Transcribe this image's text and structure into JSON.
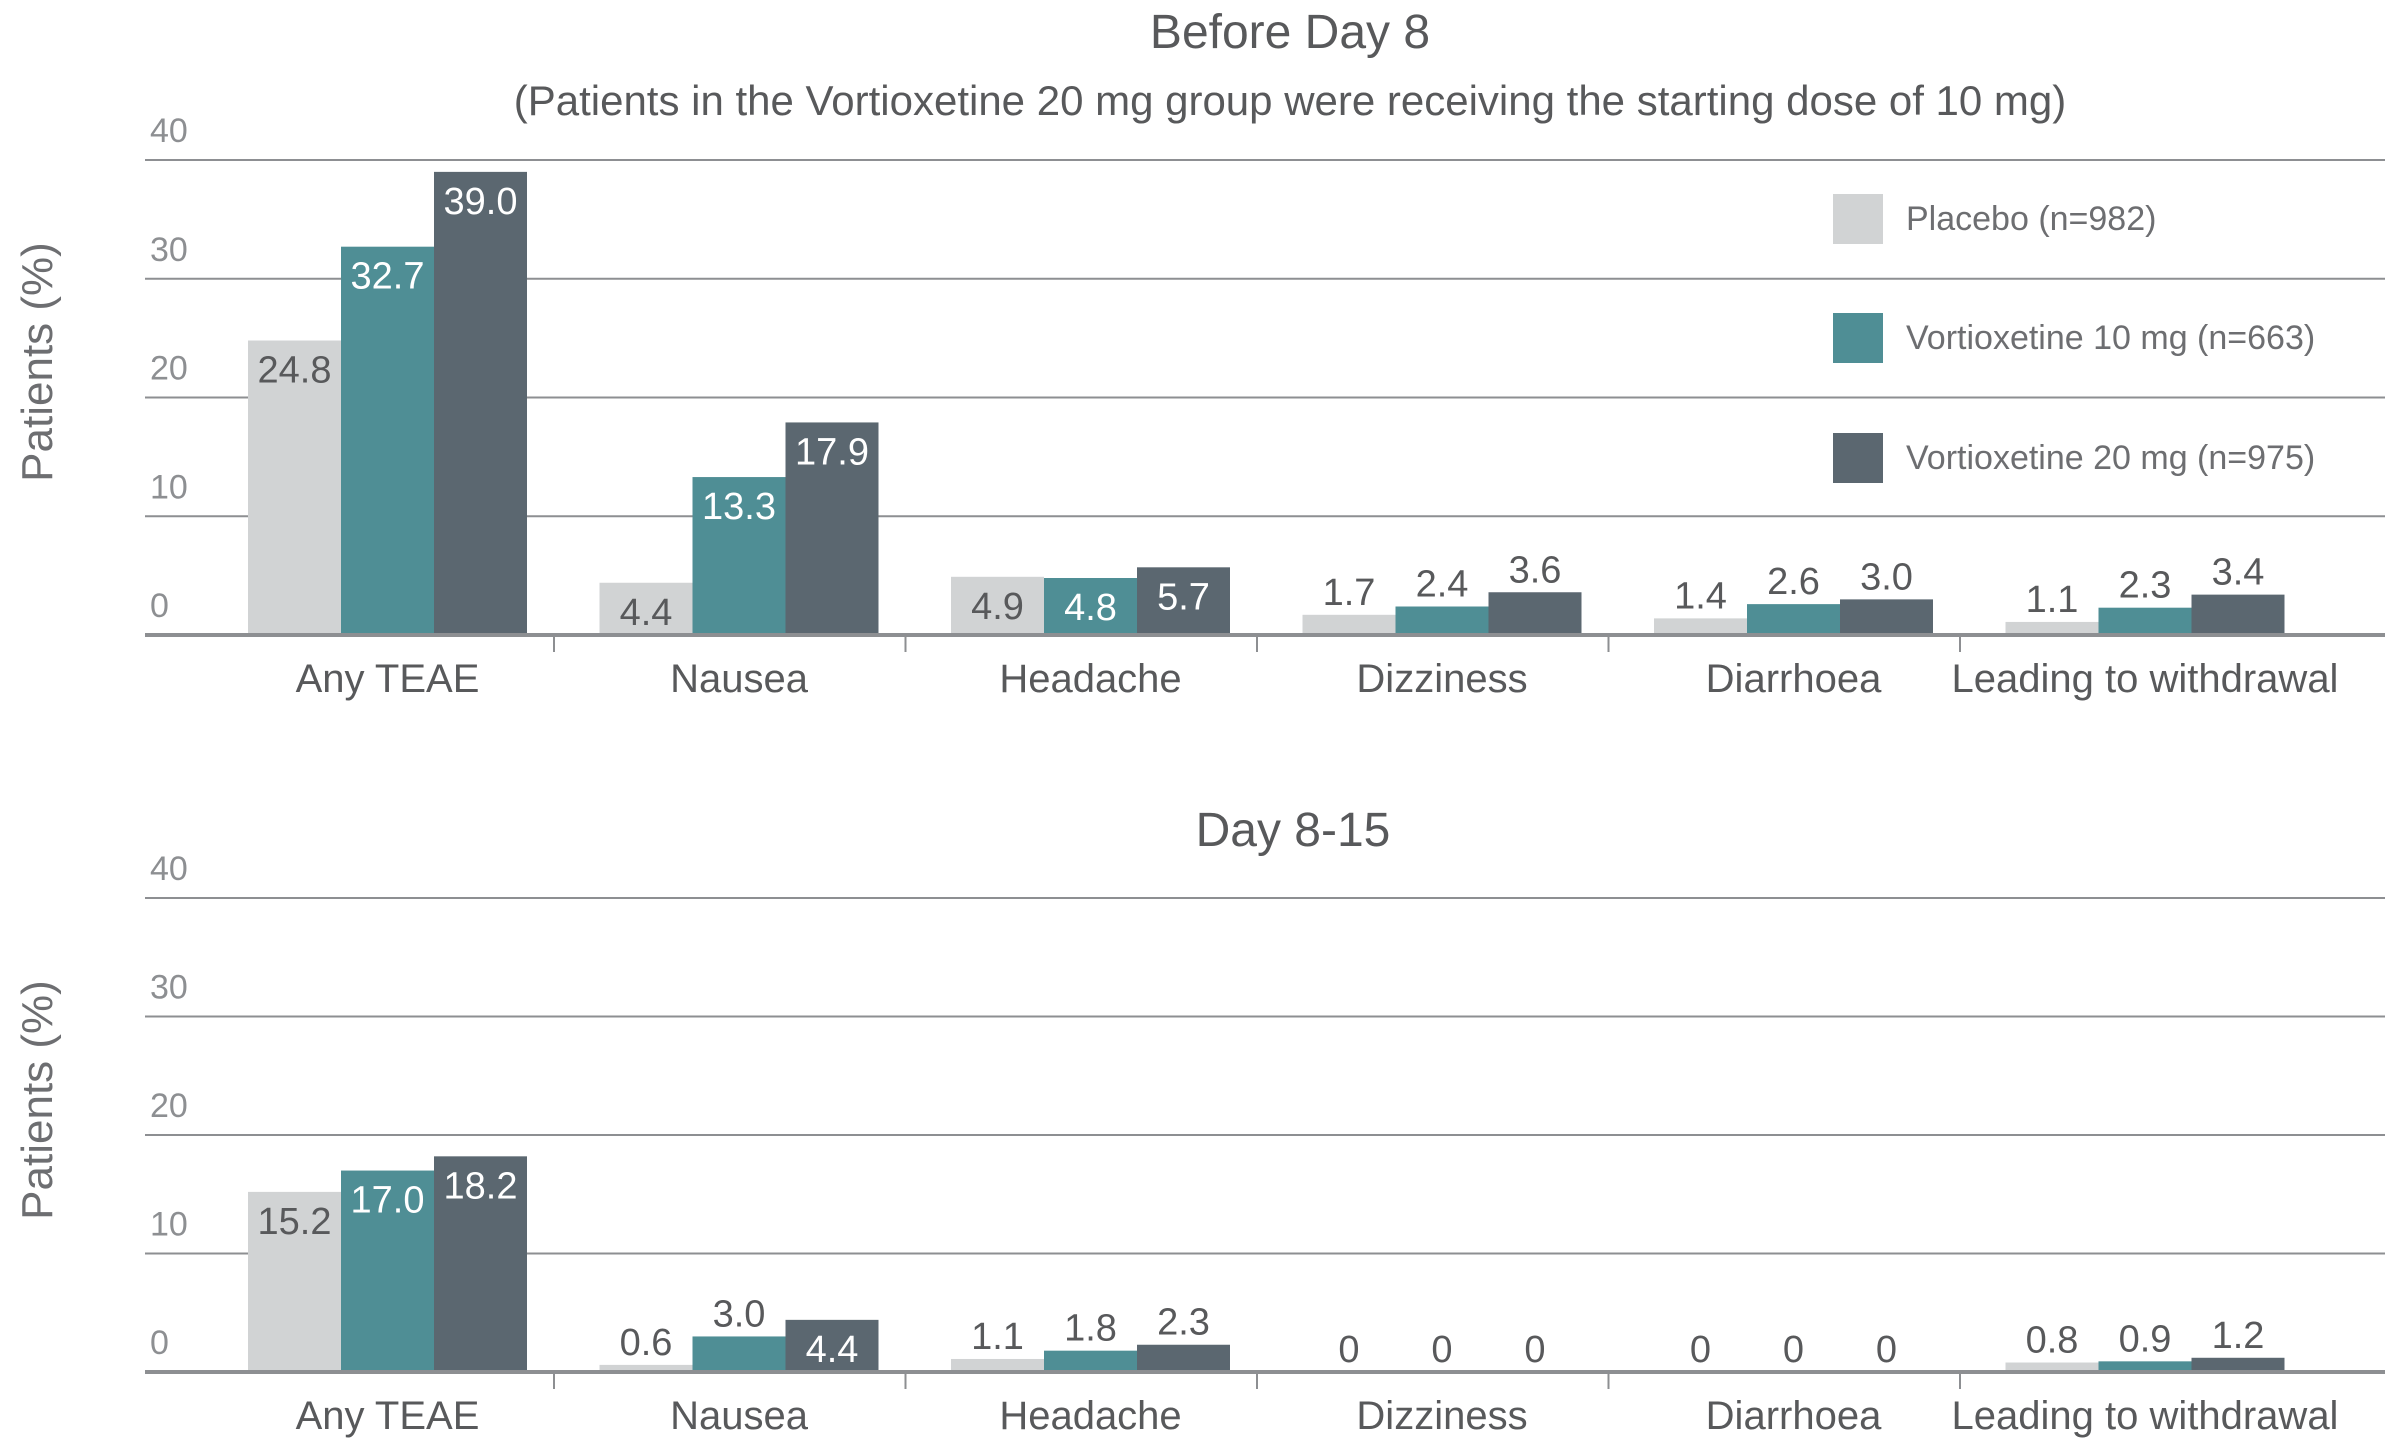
{
  "legend": [
    {
      "name": "Placebo (n=982)",
      "color": "#d1d3d4"
    },
    {
      "name": "Vortioxetine 10 mg (n=663)",
      "color": "#4f8e95"
    },
    {
      "name": "Vortioxetine 20 mg (n=975)",
      "color": "#5b6770"
    }
  ],
  "chart_data": [
    {
      "type": "bar",
      "title": "Before Day 8",
      "subtitle": "(Patients in the Vortioxetine 20 mg group were receiving the starting dose of 10 mg)",
      "ylabel": "Patients (%)",
      "ylim": [
        0,
        40
      ],
      "yticks": [
        "0",
        "10",
        "20",
        "30",
        "40"
      ],
      "grid": true,
      "legend_position": "top-right",
      "categories": [
        "Any TEAE",
        "Nausea",
        "Headache",
        "Dizziness",
        "Diarrhoea",
        "Leading to withdrawal"
      ],
      "series": [
        {
          "name": "Placebo (n=982)",
          "values": [
            24.8,
            4.4,
            4.9,
            1.7,
            1.4,
            1.1
          ],
          "labels": [
            "24.8",
            "4.4",
            "4.9",
            "1.7",
            "1.4",
            "1.1"
          ]
        },
        {
          "name": "Vortioxetine 10 mg (n=663)",
          "values": [
            32.7,
            13.3,
            4.8,
            2.4,
            2.6,
            2.3
          ],
          "labels": [
            "32.7",
            "13.3",
            "4.8",
            "2.4",
            "2.6",
            "2.3"
          ]
        },
        {
          "name": "Vortioxetine 20 mg (n=975)",
          "values": [
            39.0,
            17.9,
            5.7,
            3.6,
            3.0,
            3.4
          ],
          "labels": [
            "39.0",
            "17.9",
            "5.7",
            "3.6",
            "3.0",
            "3.4"
          ]
        }
      ]
    },
    {
      "type": "bar",
      "title": "Day 8-15",
      "subtitle": "",
      "ylabel": "Patients (%)",
      "ylim": [
        0,
        40
      ],
      "yticks": [
        "0",
        "10",
        "20",
        "30",
        "40"
      ],
      "grid": true,
      "categories": [
        "Any TEAE",
        "Nausea",
        "Headache",
        "Dizziness",
        "Diarrhoea",
        "Leading to withdrawal"
      ],
      "series": [
        {
          "name": "Placebo (n=982)",
          "values": [
            15.2,
            0.6,
            1.1,
            0,
            0,
            0.8
          ],
          "labels": [
            "15.2",
            "0.6",
            "1.1",
            "0",
            "0",
            "0.8"
          ]
        },
        {
          "name": "Vortioxetine 10 mg (n=663)",
          "values": [
            17.0,
            3.0,
            1.8,
            0,
            0,
            0.9
          ],
          "labels": [
            "17.0",
            "3.0",
            "1.8",
            "0",
            "0",
            "0.9"
          ]
        },
        {
          "name": "Vortioxetine 20 mg (n=975)",
          "values": [
            18.2,
            4.4,
            2.3,
            0,
            0,
            1.2
          ],
          "labels": [
            "18.2",
            "4.4",
            "2.3",
            "0",
            "0",
            "1.2"
          ]
        }
      ]
    }
  ]
}
